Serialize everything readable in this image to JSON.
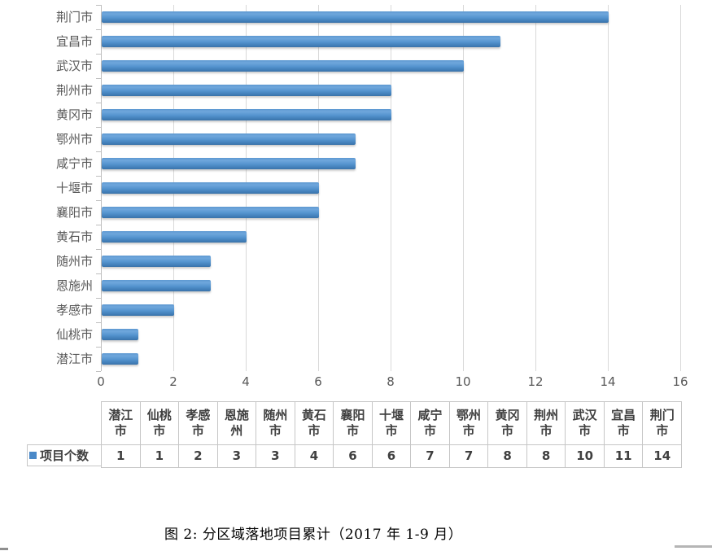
{
  "colors": {
    "bar": "#4E8CC8",
    "gridline": "#D9D9D9",
    "axis": "#BFBFBF",
    "axis_label_text": "#595959",
    "table_border": "#C6C6C6",
    "table_text": "#404040",
    "caption_text": "#000000"
  },
  "chart_data": {
    "type": "bar",
    "orientation": "horizontal",
    "title": "",
    "xlabel": "",
    "ylabel": "",
    "categories": [
      "潜江市",
      "仙桃市",
      "孝感市",
      "恩施州",
      "随州市",
      "黄石市",
      "襄阳市",
      "十堰市",
      "咸宁市",
      "鄂州市",
      "黄冈市",
      "荆州市",
      "武汉市",
      "宜昌市",
      "荆门市"
    ],
    "series": [
      {
        "name": "项目个数",
        "values": [
          1,
          1,
          2,
          3,
          3,
          4,
          6,
          6,
          7,
          7,
          8,
          8,
          10,
          11,
          14
        ]
      }
    ],
    "bar_order_top_to_bottom": [
      "荆门市",
      "宜昌市",
      "武汉市",
      "荆州市",
      "黄冈市",
      "鄂州市",
      "咸宁市",
      "十堰市",
      "襄阳市",
      "黄石市",
      "随州市",
      "恩施州",
      "孝感市",
      "仙桃市",
      "潜江市"
    ],
    "xlim": [
      0,
      16
    ],
    "xticks": [
      0,
      2,
      4,
      6,
      8,
      10,
      12,
      14,
      16
    ],
    "grid": true,
    "legend_position": "data-table-left",
    "data_table_shown": true
  },
  "caption": {
    "text": "图 2: 分区域落地项目累计（2017 年 1-9 月）"
  }
}
